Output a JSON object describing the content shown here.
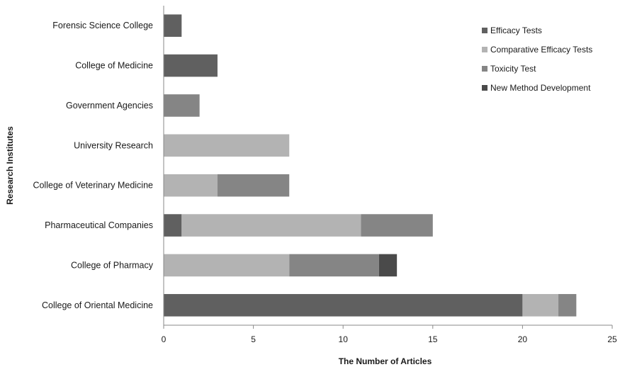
{
  "chart_data": {
    "type": "bar",
    "orientation": "horizontal",
    "stacked": true,
    "title": "",
    "xlabel": "The Number of Articles",
    "ylabel": "Research Institutes",
    "xlim": [
      0,
      25
    ],
    "xticks": [
      0,
      5,
      10,
      15,
      20,
      25
    ],
    "grid": false,
    "legend_position": "top-right",
    "categories": [
      "Forensic Science College",
      "College of Medicine",
      "Government Agencies",
      "University Research",
      "College of Veterinary Medicine",
      "Pharmaceutical Companies",
      "College of Pharmacy",
      "College of Oriental Medicine"
    ],
    "series": [
      {
        "name": "Efficacy Tests",
        "color": "#606060",
        "values": [
          1,
          3,
          0,
          0,
          0,
          1,
          0,
          20
        ]
      },
      {
        "name": "Comparative Efficacy Tests",
        "color": "#b3b3b3",
        "values": [
          0,
          0,
          0,
          7,
          3,
          10,
          7,
          2
        ]
      },
      {
        "name": "Toxicity Test",
        "color": "#858585",
        "values": [
          0,
          0,
          2,
          0,
          4,
          4,
          5,
          1
        ]
      },
      {
        "name": "New Method Development",
        "color": "#4a4a4a",
        "values": [
          0,
          0,
          0,
          0,
          0,
          0,
          1,
          0
        ]
      }
    ]
  }
}
